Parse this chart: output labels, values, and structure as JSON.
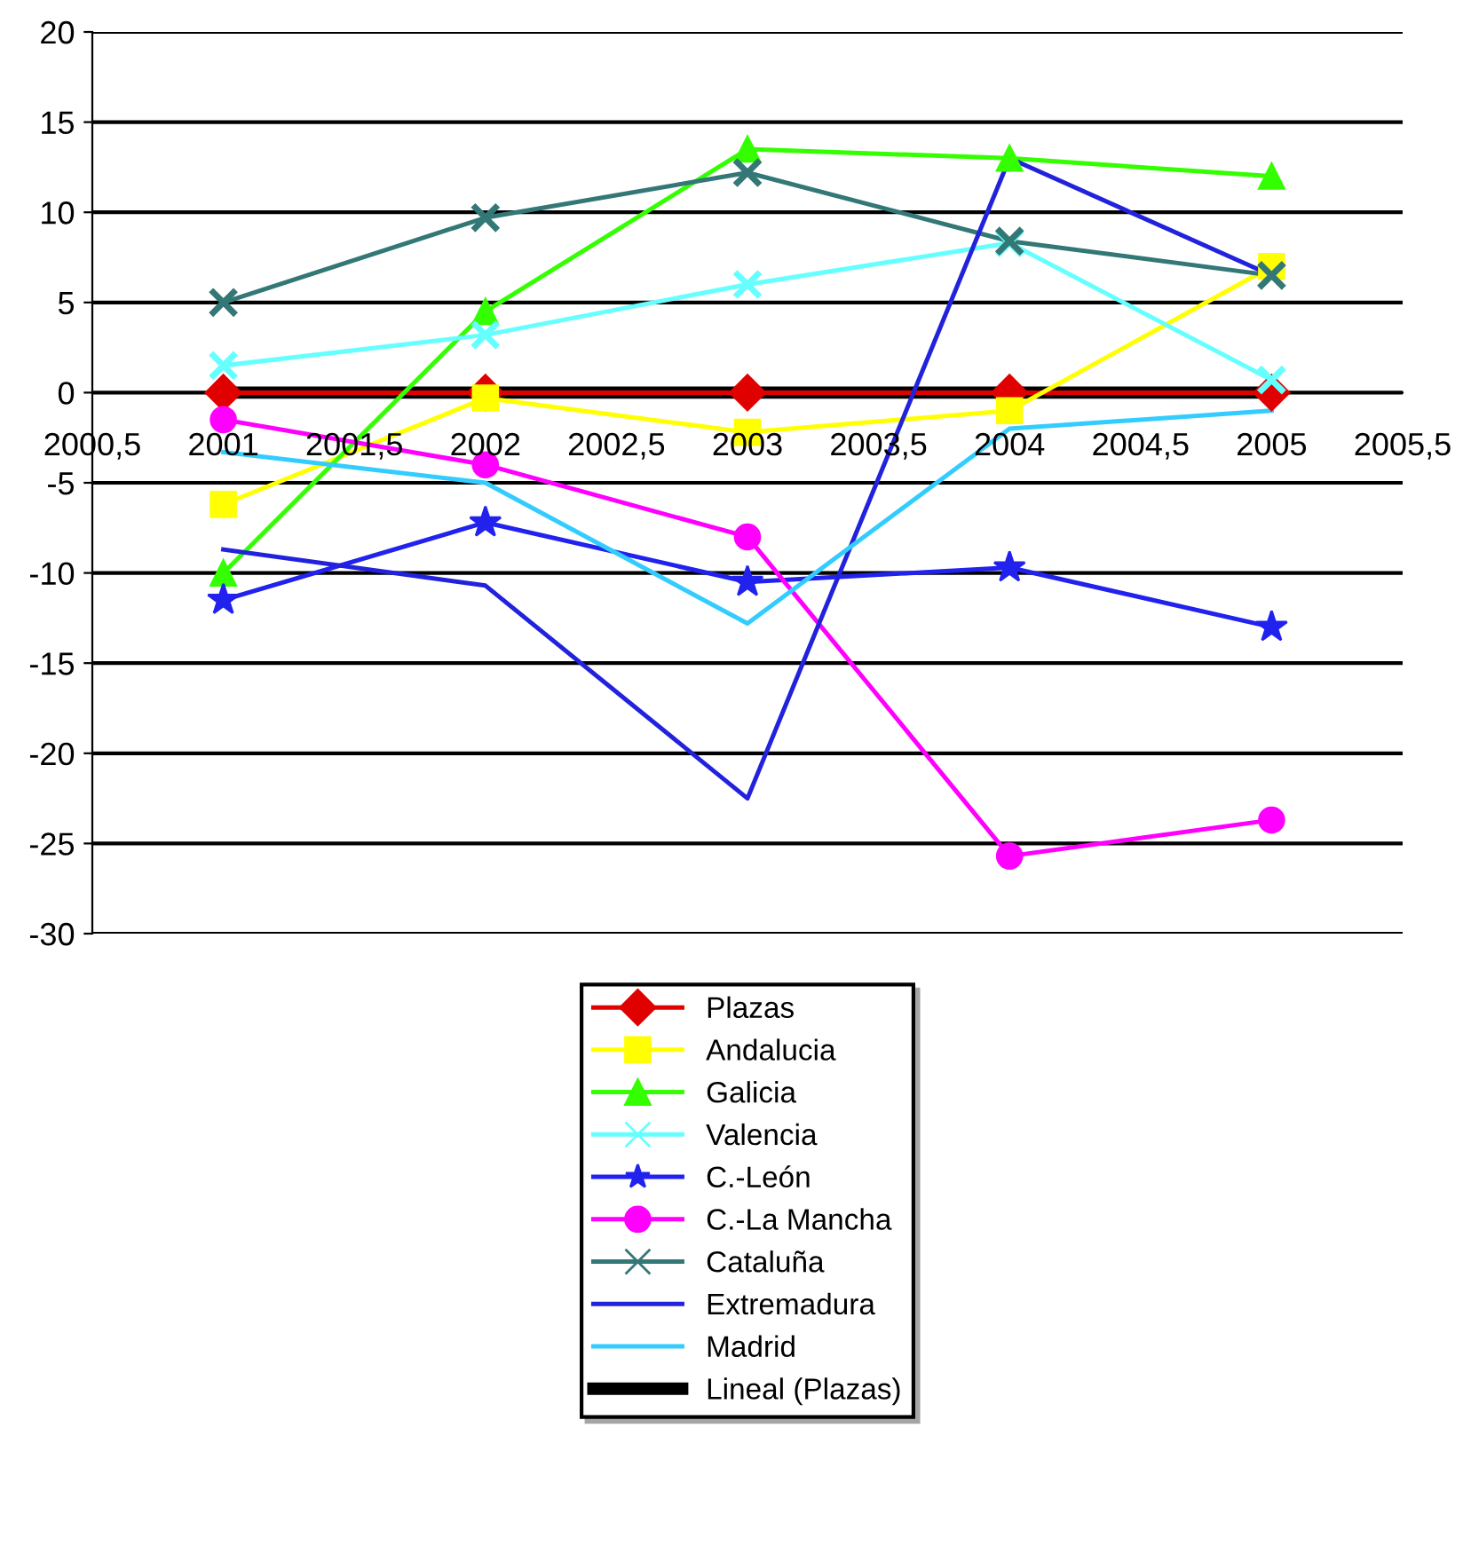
{
  "chart_data": {
    "type": "line",
    "x": [
      2001,
      2002,
      2003,
      2004,
      2005
    ],
    "xlim": [
      2000.5,
      2005.5
    ],
    "xticks": [
      {
        "value": 2000.5,
        "label": "2000,5"
      },
      2001,
      {
        "value": 2001.5,
        "label": "2001,5"
      },
      2002,
      {
        "value": 2002.5,
        "label": "2002,5"
      },
      2003,
      {
        "value": 2003.5,
        "label": "2003,5"
      },
      2004,
      {
        "value": 2004.5,
        "label": "2004,5"
      },
      2005,
      {
        "value": 2005.5,
        "label": "2005,5"
      }
    ],
    "ylim": [
      -30,
      20
    ],
    "yticks": [
      -30,
      -25,
      -20,
      -15,
      -10,
      -5,
      0,
      5,
      10,
      15,
      20
    ],
    "grid": "y",
    "legend": "bottom",
    "series": [
      {
        "name": "Plazas",
        "color": "#e00000",
        "marker": "diamond",
        "values": [
          0,
          0,
          0,
          0,
          0
        ]
      },
      {
        "name": "Andalucia",
        "color": "#ffff00",
        "marker": "square",
        "values": [
          -6.2,
          -0.3,
          -2.2,
          -1,
          7
        ]
      },
      {
        "name": "Galicia",
        "color": "#33ff00",
        "marker": "triangle",
        "values": [
          -10,
          4.5,
          13.5,
          13,
          12
        ]
      },
      {
        "name": "Valencia",
        "color": "#66ffff",
        "marker": "cross",
        "values": [
          1.5,
          3.2,
          6,
          8.3,
          0.7
        ]
      },
      {
        "name": "C.-León",
        "color": "#2222ee",
        "marker": "star",
        "values": [
          -11.5,
          -7.2,
          -10.5,
          -9.7,
          -13
        ]
      },
      {
        "name": "C.-La Mancha",
        "color": "#ff00ff",
        "marker": "circle",
        "values": [
          -1.5,
          -4,
          -8,
          -25.7,
          -23.7
        ]
      },
      {
        "name": "Cataluña",
        "color": "#337777",
        "marker": "cross",
        "values": [
          5,
          9.7,
          12.2,
          8.4,
          6.5
        ]
      },
      {
        "name": "Extremadura",
        "color": "#2222dd",
        "marker": "none",
        "values": [
          -8.7,
          -10.7,
          -22.5,
          13,
          6.5
        ]
      },
      {
        "name": "Madrid",
        "color": "#33ccff",
        "marker": "none",
        "values": [
          -3.3,
          -5,
          -12.8,
          -2,
          -1
        ]
      },
      {
        "name": "Lineal (Plazas)",
        "color": "#000000",
        "x": [
          2001,
          2005
        ],
        "values": [
          0,
          0
        ]
      }
    ]
  }
}
